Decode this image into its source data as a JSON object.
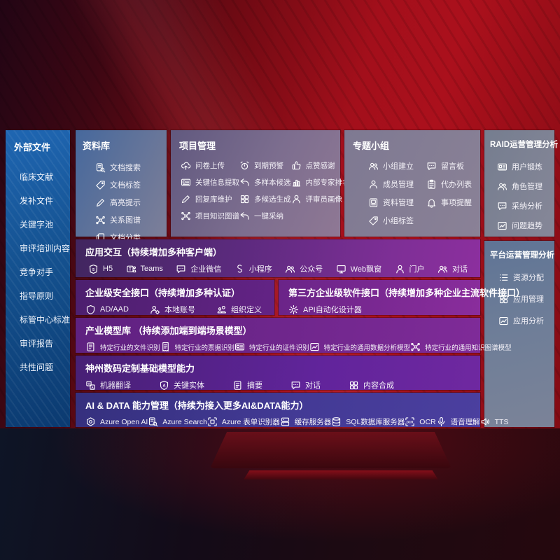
{
  "colors": {
    "background_red": "#a30f1b",
    "sidebar_blue": "#15518f",
    "band_purple": "#7e2f96",
    "band_indigo": "#3f3794",
    "panel_grey": "#85818f"
  },
  "sidebar": {
    "title": "外部文件",
    "items": [
      "临床文献",
      "发补文件",
      "关键字池",
      "审评培训内容",
      "竞争对手",
      "指导原则",
      "标管中心标准",
      "审评报告",
      "共性问题"
    ]
  },
  "panels": {
    "repo": {
      "title": "资料库",
      "items": [
        {
          "icon": "doc-search",
          "label": "文档搜索"
        },
        {
          "icon": "tag",
          "label": "文档标签"
        },
        {
          "icon": "pen",
          "label": "高亮提示"
        },
        {
          "icon": "network",
          "label": "关系图谱"
        },
        {
          "icon": "copy",
          "label": "文档分类"
        }
      ]
    },
    "project": {
      "title": "项目管理",
      "columns": [
        [
          {
            "icon": "cloud-upload",
            "label": "问卷上传"
          },
          {
            "icon": "card",
            "label": "关键信息提取"
          },
          {
            "icon": "pen",
            "label": "回复库维护"
          },
          {
            "icon": "network",
            "label": "项目知识图谱"
          }
        ],
        [
          {
            "icon": "alarm",
            "label": "到期预警"
          },
          {
            "icon": "arrow-back",
            "label": "多样本候选"
          },
          {
            "icon": "grid",
            "label": "多候选生成"
          },
          {
            "icon": "arrow-back",
            "label": "一键采纳"
          }
        ],
        [
          {
            "icon": "thumb",
            "label": "点赞感谢"
          },
          {
            "icon": "chart",
            "label": "内部专家排名"
          },
          {
            "icon": "person",
            "label": "评审员画像"
          }
        ]
      ]
    },
    "groups": {
      "title": "专题小组",
      "columns": [
        [
          {
            "icon": "people",
            "label": "小组建立"
          },
          {
            "icon": "person-add",
            "label": "成员管理"
          },
          {
            "icon": "album",
            "label": "资料管理"
          },
          {
            "icon": "tag",
            "label": "小组标签"
          }
        ],
        [
          {
            "icon": "bbs-chat",
            "label": "留言板"
          },
          {
            "icon": "clipboard",
            "label": "代办列表"
          },
          {
            "icon": "bell",
            "label": "事项提醒"
          }
        ]
      ]
    },
    "raid": {
      "title": "RAID运营管理分析",
      "items": [
        {
          "icon": "id-card",
          "label": "用户锻炼"
        },
        {
          "icon": "people",
          "label": "角色管理"
        },
        {
          "icon": "qa-chat",
          "label": "采纳分析"
        },
        {
          "icon": "trend",
          "label": "问题趋势"
        }
      ]
    },
    "platform": {
      "title": "平台运营管理分析",
      "items": [
        {
          "icon": "list",
          "label": "资源分配"
        },
        {
          "icon": "apps-grid",
          "label": "应用管理"
        },
        {
          "icon": "app-analysis",
          "label": "应用分析"
        }
      ]
    }
  },
  "bands": {
    "interaction": {
      "title": "应用交互（持续增加多种客户端）",
      "items": [
        {
          "icon": "h5",
          "label": "H5"
        },
        {
          "icon": "teams",
          "label": "Teams"
        },
        {
          "icon": "wechat-chat",
          "label": "企业微信"
        },
        {
          "icon": "miniprogram",
          "label": "小程序"
        },
        {
          "icon": "official-account",
          "label": "公众号"
        },
        {
          "icon": "web-window",
          "label": "Web飘窗"
        },
        {
          "icon": "portal",
          "label": "门户"
        },
        {
          "icon": "dialog",
          "label": "对话"
        }
      ]
    },
    "security": {
      "title": "企业级安全接口（持续增加多种认证）",
      "items": [
        {
          "icon": "ad-shield",
          "label": "AD/AAD"
        },
        {
          "icon": "local-account",
          "label": "本地账号"
        },
        {
          "icon": "org-users",
          "label": "组织定义"
        }
      ]
    },
    "thirdparty": {
      "title": "第三方企业级软件接口（持续增加多种企业主流软件接口）",
      "items": [
        {
          "icon": "api-gear",
          "label": "API自动化设计器"
        }
      ]
    },
    "industry": {
      "title": "产业模型库 （持续添加端到端场景模型）",
      "items": [
        {
          "icon": "doc",
          "label": "特定行业的文件识别"
        },
        {
          "icon": "receipt",
          "label": "特定行业的票据识别"
        },
        {
          "icon": "cert-card",
          "label": "特定行业的证件识别"
        },
        {
          "icon": "data-model",
          "label": "特定行业的通用数据分析模型"
        },
        {
          "icon": "kg-network",
          "label": "特定行业的通用知识图谱模型"
        }
      ]
    },
    "base": {
      "title": "神州数码定制基础模型能力",
      "items": [
        {
          "icon": "translate",
          "label": "机器翻译"
        },
        {
          "icon": "entity-shield",
          "label": "关键实体"
        },
        {
          "icon": "summary-doc",
          "label": "摘要"
        },
        {
          "icon": "chat",
          "label": "对话"
        },
        {
          "icon": "compose-grid",
          "label": "内容合成"
        }
      ]
    },
    "aidata": {
      "title": "AI & DATA 能力管理（持续为接入更多AI&DATA能力）",
      "items": [
        {
          "icon": "openai",
          "label": "Azure Open AI"
        },
        {
          "icon": "azure-search",
          "label": "Azure Search"
        },
        {
          "icon": "form-scan",
          "label": "Azure 表单识别器"
        },
        {
          "icon": "cache-server",
          "label": "缓存服务器"
        },
        {
          "icon": "sql-db",
          "label": "SQL数据库服务器"
        },
        {
          "icon": "ocr",
          "label": "OCR"
        },
        {
          "icon": "speech-mic",
          "label": "语音理解"
        },
        {
          "icon": "tts-speaker",
          "label": "TTS"
        }
      ]
    }
  }
}
